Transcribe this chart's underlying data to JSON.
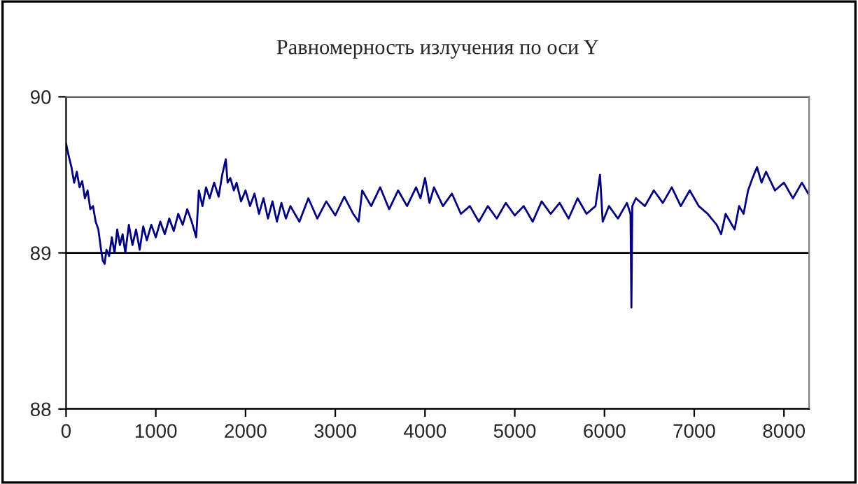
{
  "chart_data": {
    "type": "line",
    "title": "Равномерность излучения по оси Y",
    "x": [
      0,
      30,
      60,
      90,
      120,
      150,
      180,
      210,
      240,
      270,
      300,
      330,
      360,
      390,
      410,
      430,
      450,
      480,
      510,
      540,
      570,
      600,
      630,
      660,
      700,
      740,
      780,
      820,
      860,
      900,
      950,
      1000,
      1050,
      1100,
      1150,
      1200,
      1250,
      1300,
      1350,
      1400,
      1450,
      1480,
      1520,
      1560,
      1600,
      1650,
      1700,
      1740,
      1780,
      1800,
      1830,
      1870,
      1900,
      1950,
      2000,
      2050,
      2100,
      2150,
      2200,
      2250,
      2300,
      2350,
      2400,
      2450,
      2500,
      2600,
      2700,
      2800,
      2900,
      3000,
      3100,
      3200,
      3260,
      3300,
      3400,
      3500,
      3600,
      3700,
      3800,
      3900,
      3950,
      4000,
      4050,
      4100,
      4200,
      4300,
      4400,
      4500,
      4600,
      4700,
      4800,
      4900,
      5000,
      5100,
      5200,
      5300,
      5400,
      5500,
      5600,
      5700,
      5800,
      5900,
      5950,
      5980,
      6050,
      6150,
      6250,
      6290,
      6300,
      6310,
      6350,
      6450,
      6550,
      6650,
      6750,
      6850,
      6950,
      7050,
      7150,
      7250,
      7300,
      7350,
      7450,
      7500,
      7550,
      7600,
      7650,
      7700,
      7750,
      7800,
      7900,
      8000,
      8100,
      8200,
      8270
    ],
    "series": [
      {
        "color": "#000080",
        "values": [
          89.7,
          89.62,
          89.55,
          89.45,
          89.52,
          89.42,
          89.46,
          89.35,
          89.4,
          89.28,
          89.3,
          89.2,
          89.15,
          89.02,
          88.95,
          88.93,
          89.02,
          88.98,
          89.1,
          89.0,
          89.15,
          89.05,
          89.12,
          89.0,
          89.18,
          89.05,
          89.15,
          89.02,
          89.17,
          89.08,
          89.18,
          89.1,
          89.2,
          89.12,
          89.22,
          89.14,
          89.25,
          89.18,
          89.28,
          89.2,
          89.1,
          89.4,
          89.3,
          89.42,
          89.35,
          89.45,
          89.36,
          89.5,
          89.6,
          89.45,
          89.48,
          89.4,
          89.45,
          89.33,
          89.4,
          89.3,
          89.38,
          89.25,
          89.35,
          89.22,
          89.33,
          89.2,
          89.32,
          89.22,
          89.3,
          89.2,
          89.35,
          89.22,
          89.33,
          89.24,
          89.36,
          89.25,
          89.2,
          89.4,
          89.3,
          89.42,
          89.28,
          89.4,
          89.3,
          89.42,
          89.35,
          89.48,
          89.32,
          89.42,
          89.3,
          89.38,
          89.25,
          89.3,
          89.2,
          89.3,
          89.22,
          89.32,
          89.24,
          89.3,
          89.2,
          89.33,
          89.25,
          89.32,
          89.22,
          89.35,
          89.25,
          89.3,
          89.5,
          89.2,
          89.3,
          89.22,
          89.32,
          89.25,
          88.65,
          89.3,
          89.35,
          89.3,
          89.4,
          89.32,
          89.42,
          89.3,
          89.4,
          89.3,
          89.25,
          89.18,
          89.12,
          89.25,
          89.15,
          89.3,
          89.25,
          89.4,
          89.48,
          89.55,
          89.45,
          89.52,
          89.4,
          89.45,
          89.35,
          89.45,
          89.38
        ]
      }
    ],
    "xlim": [
      0,
      8280
    ],
    "ylim": [
      88,
      90
    ],
    "xticks": [
      0,
      1000,
      2000,
      3000,
      4000,
      5000,
      6000,
      7000,
      8000
    ],
    "yticks": [
      88,
      89,
      90
    ],
    "grid": "y",
    "legend": false,
    "marker": "none",
    "line_style": "solid"
  }
}
